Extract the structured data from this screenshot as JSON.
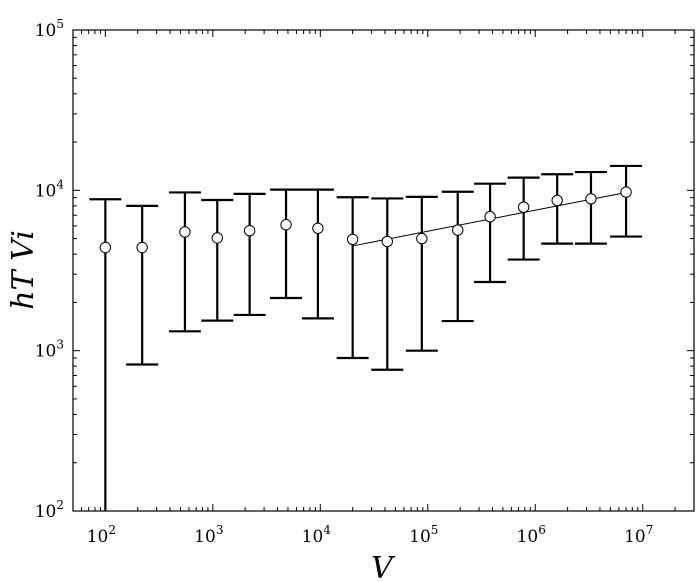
{
  "chart_data": {
    "type": "scatter",
    "title": "",
    "xlabel": "V",
    "ylabel": "hT Vi",
    "x_scale": "log",
    "y_scale": "log",
    "xlim": [
      50,
      30000000
    ],
    "ylim": [
      100,
      100000
    ],
    "grid": false,
    "x_ticks": [
      {
        "value": 100,
        "base": "10",
        "exp": "2"
      },
      {
        "value": 1000,
        "base": "10",
        "exp": "3"
      },
      {
        "value": 10000,
        "base": "10",
        "exp": "4"
      },
      {
        "value": 100000,
        "base": "10",
        "exp": "5"
      },
      {
        "value": 1000000,
        "base": "10",
        "exp": "6"
      },
      {
        "value": 10000000,
        "base": "10",
        "exp": "7"
      }
    ],
    "y_ticks": [
      {
        "value": 100,
        "base": "10",
        "exp": "2"
      },
      {
        "value": 1000,
        "base": "10",
        "exp": "3"
      },
      {
        "value": 10000,
        "base": "10",
        "exp": "4"
      },
      {
        "value": 100000,
        "base": "10",
        "exp": "5"
      }
    ],
    "points": [
      {
        "x": 100,
        "y": 4400,
        "y_low": 100,
        "y_high": 8800
      },
      {
        "x": 220,
        "y": 4400,
        "y_low": 820,
        "y_high": 8000
      },
      {
        "x": 550,
        "y": 5500,
        "y_low": 1320,
        "y_high": 9700
      },
      {
        "x": 1100,
        "y": 5050,
        "y_low": 1540,
        "y_high": 8700
      },
      {
        "x": 2200,
        "y": 5600,
        "y_low": 1670,
        "y_high": 9500
      },
      {
        "x": 4800,
        "y": 6100,
        "y_low": 2130,
        "y_high": 10100
      },
      {
        "x": 9500,
        "y": 5800,
        "y_low": 1590,
        "y_high": 10100
      },
      {
        "x": 20000,
        "y": 4950,
        "y_low": 900,
        "y_high": 9050
      },
      {
        "x": 42000,
        "y": 4800,
        "y_low": 760,
        "y_high": 8900
      },
      {
        "x": 88000,
        "y": 5000,
        "y_low": 1000,
        "y_high": 9100
      },
      {
        "x": 190000,
        "y": 5650,
        "y_low": 1530,
        "y_high": 9800
      },
      {
        "x": 380000,
        "y": 6850,
        "y_low": 2680,
        "y_high": 11000
      },
      {
        "x": 780000,
        "y": 7850,
        "y_low": 3700,
        "y_high": 12000
      },
      {
        "x": 1600000,
        "y": 8650,
        "y_low": 4650,
        "y_high": 12600
      },
      {
        "x": 3300000,
        "y": 8850,
        "y_low": 4650,
        "y_high": 13000
      },
      {
        "x": 7000000,
        "y": 9750,
        "y_low": 5150,
        "y_high": 14200
      }
    ],
    "fit_line": {
      "x": [
        20000,
        7000000
      ],
      "y": [
        4500,
        9700
      ]
    }
  }
}
